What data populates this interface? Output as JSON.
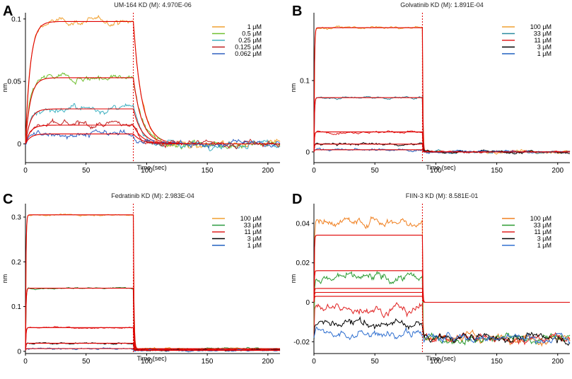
{
  "chart_data": [
    {
      "type": "line",
      "panel": "A",
      "title": "UM-164 KD (M): 4.970E-06",
      "xlabel": "Time (sec)",
      "ylabel": "nm",
      "xlim": [
        0,
        210
      ],
      "ylim": [
        -0.015,
        0.105
      ],
      "xticks": [
        0,
        50,
        100,
        150,
        200
      ],
      "yticks": [
        0,
        0.05,
        0.1
      ],
      "ytick_labels": [
        "0",
        "0.05",
        "0.1"
      ],
      "switch_time": 89,
      "fit_color": "#e00000",
      "noise": 0.003,
      "tau_assoc": 4,
      "tau_dissoc": 7,
      "series": [
        {
          "name": "1 μM",
          "color": "#f0a030",
          "plateau": 0.098,
          "baseline": 0.0
        },
        {
          "name": "0.5 μM",
          "color": "#70c030",
          "plateau": 0.053,
          "baseline": 0.0
        },
        {
          "name": "0.25 μM",
          "color": "#40b0c0",
          "plateau": 0.028,
          "baseline": 0.0
        },
        {
          "name": "0.125 μM",
          "color": "#c02020",
          "plateau": 0.015,
          "baseline": 0.0
        },
        {
          "name": "0.062 μM",
          "color": "#3060c0",
          "plateau": 0.008,
          "baseline": 0.0
        }
      ]
    },
    {
      "type": "line",
      "panel": "B",
      "title": "Golvatinib KD (M): 1.891E-04",
      "xlabel": "Time (sec)",
      "ylabel": "nm",
      "xlim": [
        0,
        210
      ],
      "ylim": [
        -0.015,
        0.195
      ],
      "xticks": [
        0,
        50,
        100,
        150,
        200
      ],
      "yticks": [
        0,
        0.1
      ],
      "ytick_labels": [
        "0",
        "0.1"
      ],
      "switch_time": 89,
      "fit_color": "#e00000",
      "noise": 0.002,
      "tau_assoc": 0.4,
      "tau_dissoc": 0.4,
      "series": [
        {
          "name": "100 μM",
          "color": "#f0a030",
          "plateau": 0.174,
          "baseline": 0.0
        },
        {
          "name": "33 μM",
          "color": "#2a8aa0",
          "plateau": 0.076,
          "baseline": 0.0
        },
        {
          "name": "11 μM",
          "color": "#e02020",
          "plateau": 0.028,
          "baseline": 0.0
        },
        {
          "name": "3 μM",
          "color": "#000000",
          "plateau": 0.011,
          "baseline": 0.0
        },
        {
          "name": "1 μM",
          "color": "#2060c0",
          "plateau": 0.003,
          "baseline": 0.0
        }
      ]
    },
    {
      "type": "line",
      "panel": "C",
      "title": "Fedratinib KD (M): 2.983E-04",
      "xlabel": "Time (sec)",
      "ylabel": "nm",
      "xlim": [
        0,
        210
      ],
      "ylim": [
        -0.005,
        0.33
      ],
      "xticks": [
        0,
        50,
        100,
        150,
        200
      ],
      "yticks": [
        0,
        0.1,
        0.2,
        0.3
      ],
      "ytick_labels": [
        "0",
        "0.1",
        "0.2",
        "0.3"
      ],
      "switch_time": 89,
      "fit_color": "#e00000",
      "noise": 0.002,
      "tau_assoc": 0.4,
      "tau_dissoc": 0.5,
      "series": [
        {
          "name": "100 μM",
          "color": "#f0a030",
          "plateau": 0.305,
          "baseline": 0.006
        },
        {
          "name": "33 μM",
          "color": "#2a9a40",
          "plateau": 0.141,
          "baseline": 0.006
        },
        {
          "name": "11 μM",
          "color": "#e02020",
          "plateau": 0.053,
          "baseline": 0.004
        },
        {
          "name": "3 μM",
          "color": "#000000",
          "plateau": 0.018,
          "baseline": 0.003
        },
        {
          "name": "1 μM",
          "color": "#2060c0",
          "plateau": 0.006,
          "baseline": 0.002
        }
      ]
    },
    {
      "type": "line",
      "panel": "D",
      "title": "FIIN-3 KD (M): 8.581E-01",
      "xlabel": "Time (sec)",
      "ylabel": "nm",
      "xlim": [
        0,
        210
      ],
      "ylim": [
        -0.026,
        0.05
      ],
      "xticks": [
        0,
        50,
        100,
        150,
        200
      ],
      "yticks": [
        -0.02,
        0,
        0.02,
        0.04
      ],
      "ytick_labels": [
        "-0.02",
        "0",
        "0.02",
        "0.04"
      ],
      "switch_time": 89,
      "fit_color": "#e00000",
      "noise": 0.0025,
      "tau_assoc": 0.3,
      "tau_dissoc": 0.3,
      "fit_levels": [
        0.034,
        0.016,
        0.007,
        0.005,
        0.003
      ],
      "series": [
        {
          "name": "100 μM",
          "color": "#f08020",
          "plateau": 0.041,
          "baseline": -0.018
        },
        {
          "name": "33 μM",
          "color": "#2a9a30",
          "plateau": 0.012,
          "baseline": -0.018
        },
        {
          "name": "11 μM",
          "color": "#e02020",
          "plateau": -0.003,
          "baseline": -0.018
        },
        {
          "name": "3 μM",
          "color": "#000000",
          "plateau": -0.011,
          "baseline": -0.018
        },
        {
          "name": "1 μM",
          "color": "#3070d0",
          "plateau": -0.016,
          "baseline": -0.018
        }
      ]
    }
  ]
}
